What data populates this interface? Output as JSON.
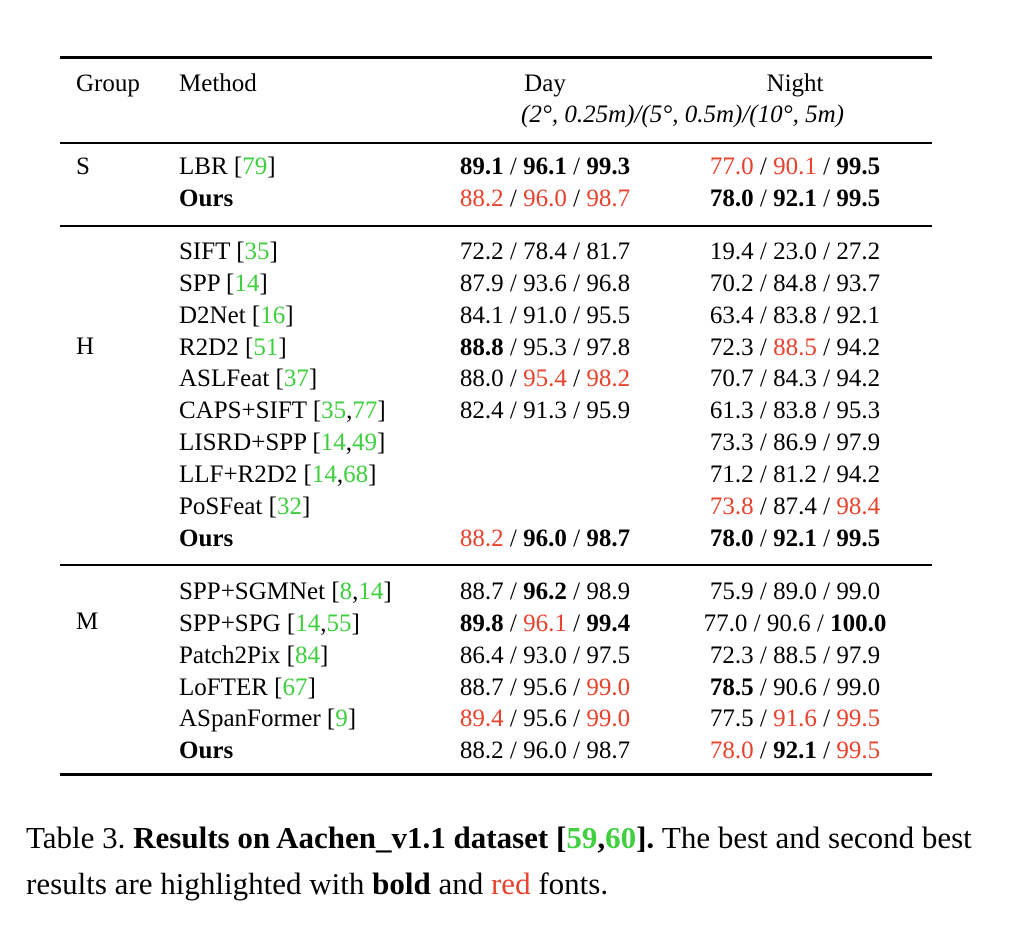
{
  "header": {
    "group": "Group",
    "method": "Method",
    "day": "Day",
    "night": "Night",
    "thresholds": "(2°, 0.25m)/(5°, 0.5m)/(10°, 5m)"
  },
  "groups": [
    {
      "label": "S",
      "rows": [
        {
          "name": "LBR [",
          "refs": [
            "79"
          ],
          "day": [
            {
              "v": "89.1",
              "s": "b"
            },
            {
              "v": "96.1",
              "s": "b"
            },
            {
              "v": "99.3",
              "s": "b"
            }
          ],
          "night": [
            {
              "v": "77.0",
              "s": "r"
            },
            {
              "v": "90.1",
              "s": "r"
            },
            {
              "v": "99.5",
              "s": "b"
            }
          ]
        },
        {
          "name": "Ours",
          "bold": true,
          "refs": [],
          "day": [
            {
              "v": "88.2",
              "s": "r"
            },
            {
              "v": "96.0",
              "s": "r"
            },
            {
              "v": "98.7",
              "s": "r"
            }
          ],
          "night": [
            {
              "v": "78.0",
              "s": "b"
            },
            {
              "v": "92.1",
              "s": "b"
            },
            {
              "v": "99.5",
              "s": "b"
            }
          ]
        }
      ]
    },
    {
      "label": "H",
      "rows": [
        {
          "name": "SIFT [",
          "refs": [
            "35"
          ],
          "day": [
            {
              "v": "72.2"
            },
            {
              "v": "78.4"
            },
            {
              "v": "81.7"
            }
          ],
          "night": [
            {
              "v": "19.4"
            },
            {
              "v": "23.0"
            },
            {
              "v": "27.2"
            }
          ]
        },
        {
          "name": "SPP [",
          "refs": [
            "14"
          ],
          "day": [
            {
              "v": "87.9"
            },
            {
              "v": "93.6"
            },
            {
              "v": "96.8"
            }
          ],
          "night": [
            {
              "v": "70.2"
            },
            {
              "v": "84.8"
            },
            {
              "v": "93.7"
            }
          ]
        },
        {
          "name": "D2Net [",
          "refs": [
            "16"
          ],
          "day": [
            {
              "v": "84.1"
            },
            {
              "v": "91.0"
            },
            {
              "v": "95.5"
            }
          ],
          "night": [
            {
              "v": "63.4"
            },
            {
              "v": "83.8"
            },
            {
              "v": "92.1"
            }
          ]
        },
        {
          "name": "R2D2 [",
          "refs": [
            "51"
          ],
          "day": [
            {
              "v": "88.8",
              "s": "b"
            },
            {
              "v": "95.3"
            },
            {
              "v": "97.8"
            }
          ],
          "night": [
            {
              "v": "72.3"
            },
            {
              "v": "88.5",
              "s": "r"
            },
            {
              "v": "94.2"
            }
          ]
        },
        {
          "name": "ASLFeat [",
          "refs": [
            "37"
          ],
          "day": [
            {
              "v": "88.0"
            },
            {
              "v": "95.4",
              "s": "r"
            },
            {
              "v": "98.2",
              "s": "r"
            }
          ],
          "night": [
            {
              "v": "70.7"
            },
            {
              "v": "84.3"
            },
            {
              "v": "94.2"
            }
          ]
        },
        {
          "name": "CAPS+SIFT [",
          "refs": [
            "35",
            "77"
          ],
          "day": [
            {
              "v": "82.4"
            },
            {
              "v": "91.3"
            },
            {
              "v": "95.9"
            }
          ],
          "night": [
            {
              "v": "61.3"
            },
            {
              "v": "83.8"
            },
            {
              "v": "95.3"
            }
          ]
        },
        {
          "name": "LISRD+SPP [",
          "refs": [
            "14",
            "49"
          ],
          "day": [],
          "night": [
            {
              "v": "73.3"
            },
            {
              "v": "86.9"
            },
            {
              "v": "97.9"
            }
          ]
        },
        {
          "name": "LLF+R2D2 [",
          "refs": [
            "14",
            "68"
          ],
          "day": [],
          "night": [
            {
              "v": "71.2"
            },
            {
              "v": "81.2"
            },
            {
              "v": "94.2"
            }
          ]
        },
        {
          "name": "PoSFeat [",
          "refs": [
            "32"
          ],
          "day": [],
          "night": [
            {
              "v": "73.8",
              "s": "r"
            },
            {
              "v": "87.4"
            },
            {
              "v": "98.4",
              "s": "r"
            }
          ]
        },
        {
          "name": "Ours",
          "bold": true,
          "refs": [],
          "day": [
            {
              "v": "88.2",
              "s": "r"
            },
            {
              "v": "96.0",
              "s": "b"
            },
            {
              "v": "98.7",
              "s": "b"
            }
          ],
          "night": [
            {
              "v": "78.0",
              "s": "b"
            },
            {
              "v": "92.1",
              "s": "b"
            },
            {
              "v": "99.5",
              "s": "b"
            }
          ]
        }
      ]
    },
    {
      "label": "M",
      "rows": [
        {
          "name": "SPP+SGMNet [",
          "refs": [
            "8",
            "14"
          ],
          "day": [
            {
              "v": "88.7"
            },
            {
              "v": "96.2",
              "s": "b"
            },
            {
              "v": "98.9"
            }
          ],
          "night": [
            {
              "v": "75.9"
            },
            {
              "v": "89.0"
            },
            {
              "v": "99.0"
            }
          ]
        },
        {
          "name": "SPP+SPG [",
          "refs": [
            "14",
            "55"
          ],
          "day": [
            {
              "v": "89.8",
              "s": "b"
            },
            {
              "v": "96.1",
              "s": "r"
            },
            {
              "v": "99.4",
              "s": "b"
            }
          ],
          "night": [
            {
              "v": "77.0"
            },
            {
              "v": "90.6"
            },
            {
              "v": "100.0",
              "s": "b"
            }
          ]
        },
        {
          "name": "Patch2Pix [",
          "refs": [
            "84"
          ],
          "day": [
            {
              "v": "86.4"
            },
            {
              "v": "93.0"
            },
            {
              "v": "97.5"
            }
          ],
          "night": [
            {
              "v": "72.3"
            },
            {
              "v": "88.5"
            },
            {
              "v": "97.9"
            }
          ]
        },
        {
          "name": "LoFTER [",
          "refs": [
            "67"
          ],
          "day": [
            {
              "v": "88.7"
            },
            {
              "v": "95.6"
            },
            {
              "v": "99.0",
              "s": "r"
            }
          ],
          "night": [
            {
              "v": "78.5",
              "s": "b"
            },
            {
              "v": "90.6"
            },
            {
              "v": "99.0"
            }
          ]
        },
        {
          "name": "ASpanFormer [",
          "refs": [
            "9"
          ],
          "day": [
            {
              "v": "89.4",
              "s": "r"
            },
            {
              "v": "95.6"
            },
            {
              "v": "99.0",
              "s": "r"
            }
          ],
          "night": [
            {
              "v": "77.5"
            },
            {
              "v": "91.6",
              "s": "r"
            },
            {
              "v": "99.5",
              "s": "r"
            }
          ]
        },
        {
          "name": "Ours",
          "bold": true,
          "refs": [],
          "day": [
            {
              "v": "88.2"
            },
            {
              "v": "96.0"
            },
            {
              "v": "98.7"
            }
          ],
          "night": [
            {
              "v": "78.0",
              "s": "r"
            },
            {
              "v": "92.1",
              "s": "b"
            },
            {
              "v": "99.5",
              "s": "r"
            }
          ]
        }
      ]
    }
  ],
  "caption": {
    "label": "Table 3.",
    "title": "Results on Aachen_v1.1 dataset [",
    "ref1": "59",
    "ref2": "60",
    "title_end": "].",
    "sentence1": "The best and second best results are highlighted with",
    "bold_word": "bold",
    "and_word": "and",
    "red_word": "red",
    "fonts_word": "fonts."
  }
}
